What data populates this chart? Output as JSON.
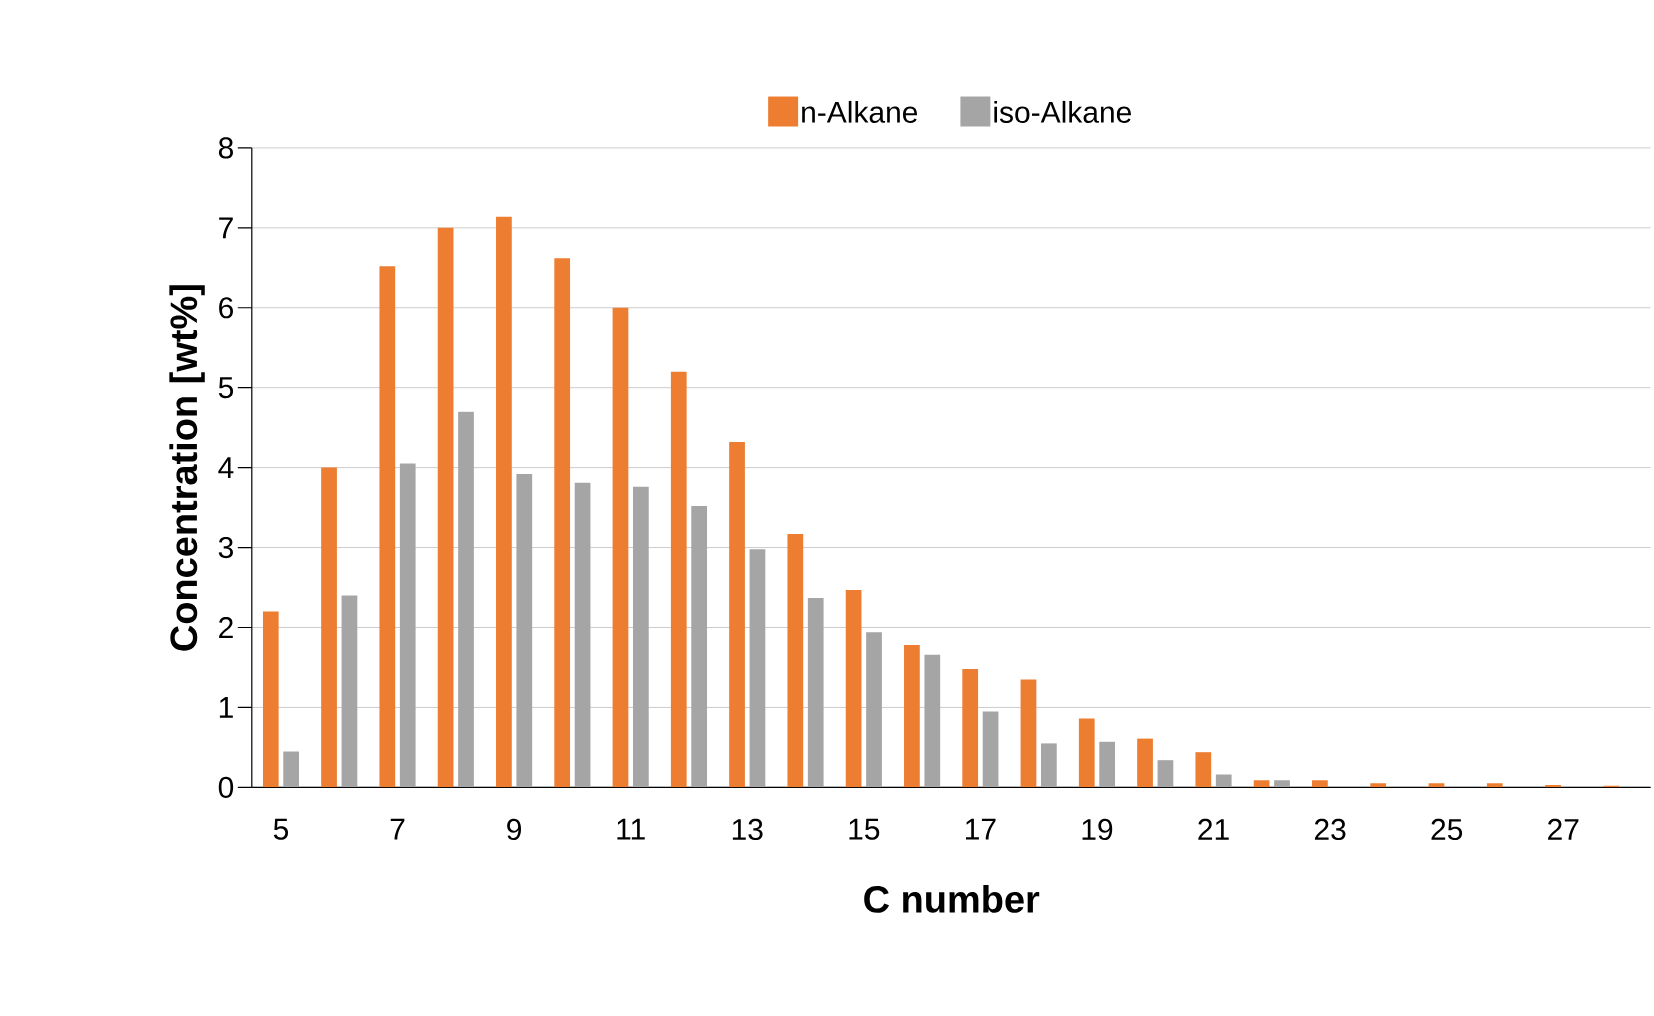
{
  "chart_data": {
    "type": "bar",
    "xlabel": "C number",
    "ylabel": "Concentration [wt%]",
    "categories": [
      "5",
      null,
      "7",
      null,
      "9",
      null,
      "11",
      null,
      "13",
      null,
      "15",
      null,
      "17",
      null,
      "19",
      null,
      "21",
      null,
      "23",
      null,
      "25",
      null,
      "27",
      null
    ],
    "series": [
      {
        "name": "n-Alkane",
        "color": "#ed7d31",
        "values": [
          2.2,
          4.0,
          6.52,
          7.0,
          7.14,
          6.62,
          6.0,
          5.2,
          4.32,
          3.17,
          2.47,
          1.78,
          1.48,
          1.35,
          0.86,
          0.61,
          0.44,
          0.09,
          0.09,
          0.05,
          0.05,
          0.05,
          0.03,
          0.02
        ]
      },
      {
        "name": "iso-Alkane",
        "color": "#a5a5a5",
        "values": [
          0.45,
          2.4,
          4.05,
          4.7,
          3.92,
          3.81,
          3.76,
          3.52,
          2.98,
          2.37,
          1.94,
          1.66,
          0.95,
          0.55,
          0.57,
          0.34,
          0.16,
          0.09,
          0,
          0,
          0,
          0,
          0,
          0
        ]
      }
    ],
    "ylim": [
      0,
      8
    ],
    "yticks": [
      0,
      1,
      2,
      3,
      4,
      5,
      6,
      7,
      8
    ],
    "grid": "y",
    "legend": "top"
  }
}
